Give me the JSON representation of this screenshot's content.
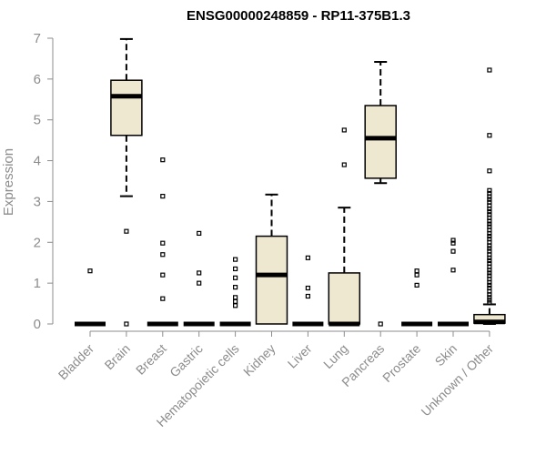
{
  "chart_data": {
    "type": "box",
    "title": "ENSG00000248859 - RP11-375B1.3",
    "xlabel": "",
    "ylabel": "Expression",
    "ylim": [
      0,
      7
    ],
    "yticks": [
      0,
      1,
      2,
      3,
      4,
      5,
      6,
      7
    ],
    "colors": {
      "box_fill": "#efe8d0",
      "box_stroke": "#000000",
      "axis": "#8c8c8c"
    },
    "categories": [
      "Bladder",
      "Brain",
      "Breast",
      "Gastric",
      "Hematopoietic cells",
      "Kidney",
      "Liver",
      "Lung",
      "Pancreas",
      "Prostate",
      "Skin",
      "Unknown / Other"
    ],
    "boxes": [
      {
        "category": "Bladder",
        "whisker_low": 0,
        "q1": 0,
        "median": 0,
        "q3": 0,
        "whisker_high": 0,
        "outliers": [
          1.3
        ]
      },
      {
        "category": "Brain",
        "whisker_low": 3.13,
        "q1": 4.62,
        "median": 5.58,
        "q3": 5.97,
        "whisker_high": 6.98,
        "outliers": [
          2.27,
          0
        ]
      },
      {
        "category": "Breast",
        "whisker_low": 0,
        "q1": 0,
        "median": 0,
        "q3": 0,
        "whisker_high": 0,
        "outliers": [
          4.02,
          3.13,
          1.98,
          1.7,
          1.2,
          0.62
        ]
      },
      {
        "category": "Gastric",
        "whisker_low": 0,
        "q1": 0,
        "median": 0,
        "q3": 0,
        "whisker_high": 0,
        "outliers": [
          2.22,
          1.25,
          1.0
        ]
      },
      {
        "category": "Hematopoietic cells",
        "whisker_low": 0,
        "q1": 0,
        "median": 0,
        "q3": 0,
        "whisker_high": 0,
        "outliers": [
          1.58,
          1.35,
          1.13,
          0.9,
          0.65,
          0.55,
          0.45
        ]
      },
      {
        "category": "Kidney",
        "whisker_low": 0,
        "q1": 0,
        "median": 1.2,
        "q3": 2.15,
        "whisker_high": 3.17,
        "outliers": []
      },
      {
        "category": "Liver",
        "whisker_low": 0,
        "q1": 0,
        "median": 0,
        "q3": 0,
        "whisker_high": 0,
        "outliers": [
          1.62,
          0.88,
          0.68
        ]
      },
      {
        "category": "Lung",
        "whisker_low": 0,
        "q1": 0,
        "median": 0,
        "q3": 1.25,
        "whisker_high": 2.85,
        "outliers": [
          4.75,
          3.9
        ]
      },
      {
        "category": "Pancreas",
        "whisker_low": 3.45,
        "q1": 3.57,
        "median": 4.55,
        "q3": 5.35,
        "whisker_high": 6.42,
        "outliers": [
          0
        ]
      },
      {
        "category": "Prostate",
        "whisker_low": 0,
        "q1": 0,
        "median": 0,
        "q3": 0,
        "whisker_high": 0,
        "outliers": [
          1.3,
          1.2,
          0.95
        ]
      },
      {
        "category": "Skin",
        "whisker_low": 0,
        "q1": 0,
        "median": 0,
        "q3": 0,
        "whisker_high": 0,
        "outliers": [
          2.05,
          1.98,
          1.78,
          1.32
        ]
      },
      {
        "category": "Unknown / Other",
        "whisker_low": 0,
        "q1": 0.02,
        "median": 0.05,
        "q3": 0.23,
        "whisker_high": 0.48,
        "outliers": [
          6.22,
          4.62,
          3.75,
          3.27,
          3.2,
          3.12,
          3.05,
          2.98,
          2.9,
          2.82,
          2.75,
          2.68,
          2.6,
          2.52,
          2.45,
          2.38,
          2.3,
          2.22,
          2.15,
          2.08,
          2.0,
          1.92,
          1.85,
          1.78,
          1.7,
          1.62,
          1.55,
          1.48,
          1.4,
          1.32,
          1.25,
          1.18,
          1.1,
          1.02,
          0.95,
          0.88,
          0.8,
          0.72,
          0.65,
          0.58,
          0.52
        ]
      }
    ]
  }
}
